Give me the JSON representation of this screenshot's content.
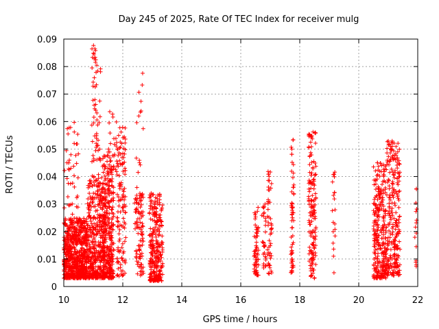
{
  "chart_data": {
    "type": "scatter",
    "title": "Day 245 of 2025, Rate Of TEC Index for receiver mulg",
    "xlabel": "GPS time / hours",
    "ylabel": "ROTI / TECUs",
    "xlim": [
      10,
      22
    ],
    "ylim": [
      0,
      0.09
    ],
    "xticks": [
      "10",
      "12",
      "14",
      "16",
      "18",
      "20",
      "22"
    ],
    "yticks": [
      "0",
      "0.01",
      "0.02",
      "0.03",
      "0.04",
      "0.05",
      "0.06",
      "0.07",
      "0.08",
      "0.09"
    ],
    "grid": true,
    "marker": "+",
    "color": "#ff0000",
    "series": [
      {
        "name": "ROTI",
        "clusters": [
          {
            "x": [
              10.0,
              10.8
            ],
            "y": [
              0.003,
              0.025
            ],
            "n": 700,
            "dense": true
          },
          {
            "x": [
              10.0,
              10.5
            ],
            "y": [
              0.02,
              0.064
            ],
            "n": 45
          },
          {
            "x": [
              10.8,
              11.4
            ],
            "y": [
              0.003,
              0.04
            ],
            "n": 400,
            "dense": true
          },
          {
            "x": [
              10.95,
              11.25
            ],
            "y": [
              0.04,
              0.088
            ],
            "n": 60
          },
          {
            "x": [
              11.3,
              11.7
            ],
            "y": [
              0.003,
              0.048
            ],
            "n": 350,
            "dense": true
          },
          {
            "x": [
              11.5,
              11.85
            ],
            "y": [
              0.04,
              0.065
            ],
            "n": 25
          },
          {
            "x": [
              11.8,
              12.1
            ],
            "y": [
              0.003,
              0.058
            ],
            "n": 120
          },
          {
            "x": [
              12.4,
              12.7
            ],
            "y": [
              0.004,
              0.035
            ],
            "n": 100
          },
          {
            "x": [
              12.45,
              12.7
            ],
            "y": [
              0.035,
              0.082
            ],
            "n": 15
          },
          {
            "x": [
              12.9,
              13.35
            ],
            "y": [
              0.002,
              0.034
            ],
            "n": 280,
            "dense": true
          },
          {
            "x": [
              16.45,
              16.6
            ],
            "y": [
              0.004,
              0.029
            ],
            "n": 60
          },
          {
            "x": [
              16.7,
              16.85
            ],
            "y": [
              0.006,
              0.03
            ],
            "n": 30
          },
          {
            "x": [
              16.9,
              17.05
            ],
            "y": [
              0.004,
              0.043
            ],
            "n": 50
          },
          {
            "x": [
              17.7,
              17.8
            ],
            "y": [
              0.005,
              0.056
            ],
            "n": 60
          },
          {
            "x": [
              18.3,
              18.55
            ],
            "y": [
              0.003,
              0.057
            ],
            "n": 150
          },
          {
            "x": [
              19.1,
              19.2
            ],
            "y": [
              0.005,
              0.042
            ],
            "n": 20
          },
          {
            "x": [
              20.5,
              20.95
            ],
            "y": [
              0.003,
              0.045
            ],
            "n": 300,
            "dense": true
          },
          {
            "x": [
              20.95,
              21.4
            ],
            "y": [
              0.004,
              0.053
            ],
            "n": 250,
            "dense": true
          },
          {
            "x": [
              21.9,
              22.0
            ],
            "y": [
              0.006,
              0.04
            ],
            "n": 15
          }
        ]
      }
    ]
  }
}
